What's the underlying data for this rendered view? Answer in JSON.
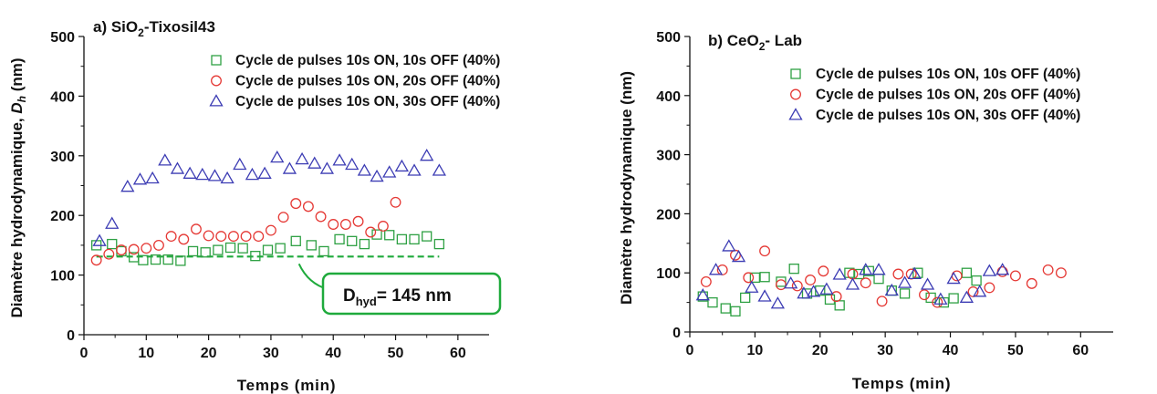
{
  "chart_data": [
    {
      "type": "scatter",
      "panel": "a",
      "title_prefix": "a) SiO",
      "title_sub": "2",
      "title_suffix": "-Tixosil43",
      "xlabel": "Temps (min)",
      "ylabel_main": "Diamètre hydrodynamique, ",
      "ylabel_italic": "D",
      "ylabel_sub": "h",
      "ylabel_unit": " (nm)",
      "xlim": [
        0,
        65
      ],
      "ylim": [
        0,
        500
      ],
      "xticks": [
        "0",
        "10",
        "20",
        "30",
        "40",
        "50",
        "60"
      ],
      "yticks": [
        "0",
        "100",
        "200",
        "300",
        "400",
        "500"
      ],
      "legend_position": "top-right",
      "series": [
        {
          "name": "Cycle de pulses 10s ON, 10s OFF (40%)",
          "marker": "square",
          "color": "#2ea043",
          "x": [
            2,
            4.5,
            6,
            8,
            9.5,
            11.5,
            13.5,
            15.5,
            17.5,
            19.5,
            21.5,
            23.5,
            25.5,
            27.5,
            29.5,
            31.5,
            34,
            36.5,
            38.5,
            41,
            43,
            45,
            47,
            49,
            51,
            53,
            55,
            57
          ],
          "y": [
            150,
            152,
            140,
            130,
            125,
            126,
            126,
            124,
            140,
            138,
            142,
            146,
            145,
            132,
            142,
            145,
            157,
            150,
            140,
            160,
            157,
            152,
            168,
            167,
            160,
            160,
            165,
            152
          ]
        },
        {
          "name": "Cycle de pulses 10s ON, 20s OFF (40%)",
          "marker": "circle",
          "color": "#e53935",
          "x": [
            2,
            4,
            6,
            8,
            10,
            12,
            14,
            16,
            18,
            20,
            22,
            24,
            26,
            28,
            30,
            32,
            34,
            36,
            38,
            40,
            42,
            44,
            46,
            48,
            50
          ],
          "y": [
            125,
            135,
            142,
            143,
            145,
            150,
            165,
            160,
            177,
            166,
            165,
            165,
            165,
            165,
            175,
            197,
            220,
            215,
            198,
            185,
            185,
            190,
            172,
            182,
            222
          ]
        },
        {
          "name": "Cycle de pulses 10s ON, 30s OFF (40%)",
          "marker": "triangle",
          "color": "#3c3cb4",
          "x": [
            2.5,
            4.5,
            7,
            9,
            11,
            13,
            15,
            17,
            19,
            21,
            23,
            25,
            27,
            29,
            31,
            33,
            35,
            37,
            39,
            41,
            43,
            45,
            47,
            49,
            51,
            53,
            55,
            57
          ],
          "y": [
            157,
            186,
            248,
            260,
            262,
            292,
            278,
            270,
            268,
            266,
            262,
            285,
            268,
            270,
            297,
            278,
            294,
            287,
            278,
            292,
            285,
            275,
            265,
            272,
            282,
            275,
            300,
            275
          ]
        }
      ],
      "reference_line": {
        "y": 131,
        "x_start": 2,
        "x_end": 57,
        "style": "dashed",
        "color": "#1faa3c"
      },
      "annotation": {
        "text_main": "D",
        "text_sub": "hyd",
        "text_rest": "= 145 nm",
        "border_color": "#1faa3c"
      }
    },
    {
      "type": "scatter",
      "panel": "b",
      "title_prefix": "b) CeO",
      "title_sub": "2",
      "title_suffix": "- Lab",
      "xlabel": "Temps (min)",
      "ylabel": "Diamètre hydrodynamique (nm)",
      "xlim": [
        0,
        65
      ],
      "ylim": [
        0,
        500
      ],
      "xticks": [
        "0",
        "10",
        "20",
        "30",
        "40",
        "50",
        "60"
      ],
      "yticks": [
        "0",
        "100",
        "200",
        "300",
        "400",
        "500"
      ],
      "legend_position": "top-right",
      "series": [
        {
          "name": "Cycle de pulses 10s ON, 10s OFF (40%)",
          "marker": "square",
          "color": "#2ea043",
          "x": [
            2,
            3.5,
            5.5,
            7,
            8.5,
            10,
            11.5,
            14,
            16,
            18,
            20,
            21.5,
            23,
            24.5,
            26,
            27.5,
            29,
            31,
            33,
            35,
            37,
            39,
            40.5,
            42.5,
            44
          ],
          "y": [
            60,
            50,
            40,
            35,
            58,
            92,
            93,
            85,
            107,
            65,
            70,
            55,
            45,
            100,
            98,
            103,
            90,
            70,
            65,
            100,
            58,
            50,
            57,
            100,
            87
          ]
        },
        {
          "name": "Cycle de pulses 10s ON, 20s OFF (40%)",
          "marker": "circle",
          "color": "#e53935",
          "x": [
            2.5,
            5,
            7,
            9,
            11.5,
            14,
            16.5,
            18.5,
            20.5,
            22.5,
            25,
            27,
            29.5,
            32,
            34,
            36,
            38,
            41,
            43.5,
            46,
            48,
            50,
            52.5,
            55,
            57
          ],
          "y": [
            85,
            105,
            130,
            92,
            137,
            80,
            78,
            88,
            103,
            60,
            98,
            83,
            52,
            98,
            98,
            63,
            50,
            95,
            68,
            75,
            102,
            95,
            82,
            105,
            100
          ]
        },
        {
          "name": "Cycle de pulses 10s ON, 30s OFF (40%)",
          "marker": "triangle",
          "color": "#3c3cb4",
          "x": [
            2,
            4,
            6,
            7.5,
            9.5,
            11.5,
            13.5,
            15.5,
            17.5,
            19,
            21,
            23,
            25,
            27,
            29,
            31,
            33,
            34.5,
            36.5,
            38.5,
            40.5,
            42.5,
            44.5,
            46,
            48
          ],
          "y": [
            62,
            105,
            145,
            127,
            75,
            60,
            48,
            82,
            65,
            68,
            72,
            97,
            80,
            105,
            105,
            70,
            83,
            98,
            80,
            55,
            90,
            58,
            68,
            103,
            105
          ]
        }
      ]
    }
  ]
}
